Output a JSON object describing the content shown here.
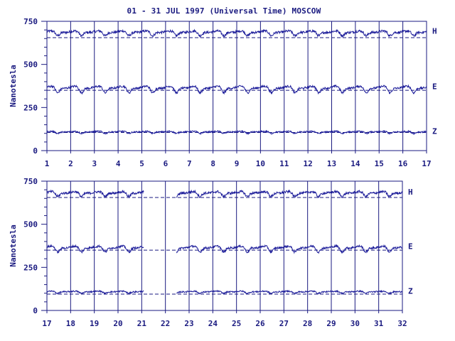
{
  "title": "01 - 31 JUL 1997 (Universal Time) MOSCOW",
  "colors": {
    "ink": "#1a1a80",
    "trace": "#1c1c9a",
    "background": "#ffffff"
  },
  "chart_data": [
    {
      "type": "line",
      "ylabel": "Nanotesla",
      "ylim": [
        0,
        750
      ],
      "yticks": [
        "0",
        "250",
        "500",
        "750"
      ],
      "xlim": [
        1,
        17
      ],
      "xticks": [
        "1",
        "2",
        "3",
        "4",
        "5",
        "6",
        "7",
        "8",
        "9",
        "10",
        "11",
        "12",
        "13",
        "14",
        "15",
        "16",
        "17"
      ],
      "grid": "vertical lines at each day",
      "series": [
        {
          "name": "H",
          "baseline": 655,
          "level": 690,
          "amplitude": 18,
          "noise": 7
        },
        {
          "name": "E",
          "baseline": 350,
          "level": 368,
          "amplitude": 25,
          "noise": 6
        },
        {
          "name": "Z",
          "baseline": 105,
          "level": 110,
          "amplitude": 8,
          "noise": 4
        }
      ],
      "gaps": []
    },
    {
      "type": "line",
      "ylabel": "Nanotesla",
      "ylim": [
        0,
        750
      ],
      "yticks": [
        "0",
        "250",
        "500",
        "750"
      ],
      "xlim": [
        17,
        32
      ],
      "xticks": [
        "17",
        "18",
        "19",
        "20",
        "21",
        "22",
        "23",
        "24",
        "25",
        "26",
        "27",
        "28",
        "29",
        "30",
        "31",
        "32"
      ],
      "grid": "vertical lines at each day",
      "series": [
        {
          "name": "H",
          "baseline": 655,
          "level": 685,
          "amplitude": 18,
          "noise": 7
        },
        {
          "name": "E",
          "baseline": 350,
          "level": 368,
          "amplitude": 22,
          "noise": 6
        },
        {
          "name": "Z",
          "baseline": 95,
          "level": 110,
          "amplitude": 8,
          "noise": 4
        }
      ],
      "gaps": [
        [
          21.1,
          22.45
        ]
      ]
    }
  ]
}
